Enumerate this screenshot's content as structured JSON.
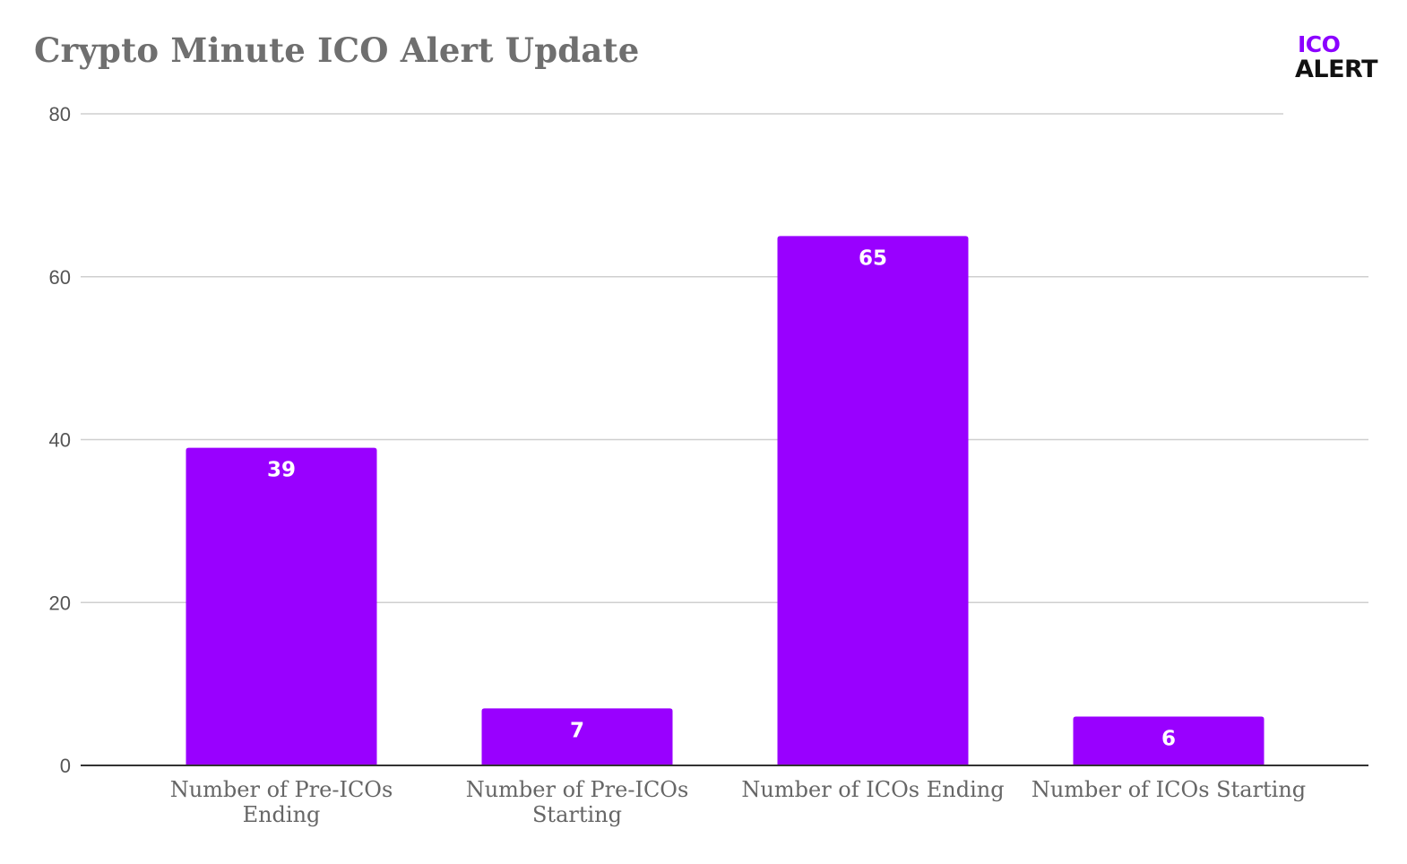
{
  "logo": {
    "line1": "ICO",
    "line2": "ALERT"
  },
  "chart_data": {
    "type": "bar",
    "title": "Crypto Minute ICO Alert Update",
    "xlabel": "",
    "ylabel": "",
    "ylim": [
      0,
      80
    ],
    "yticks": [
      0,
      20,
      40,
      60,
      80
    ],
    "grid": true,
    "legend": "none",
    "categories": [
      [
        "Number of Pre-ICOs",
        "Ending"
      ],
      [
        "Number of Pre-ICOs",
        "Starting"
      ],
      [
        "Number of ICOs Ending"
      ],
      [
        "Number of ICOs Starting"
      ]
    ],
    "values": [
      39,
      7,
      65,
      6
    ],
    "data_labels": [
      "39",
      "7",
      "65",
      "6"
    ],
    "colors": {
      "bar": "#9900ff",
      "grid": "#cfcfcf",
      "axis": "#333333"
    }
  }
}
